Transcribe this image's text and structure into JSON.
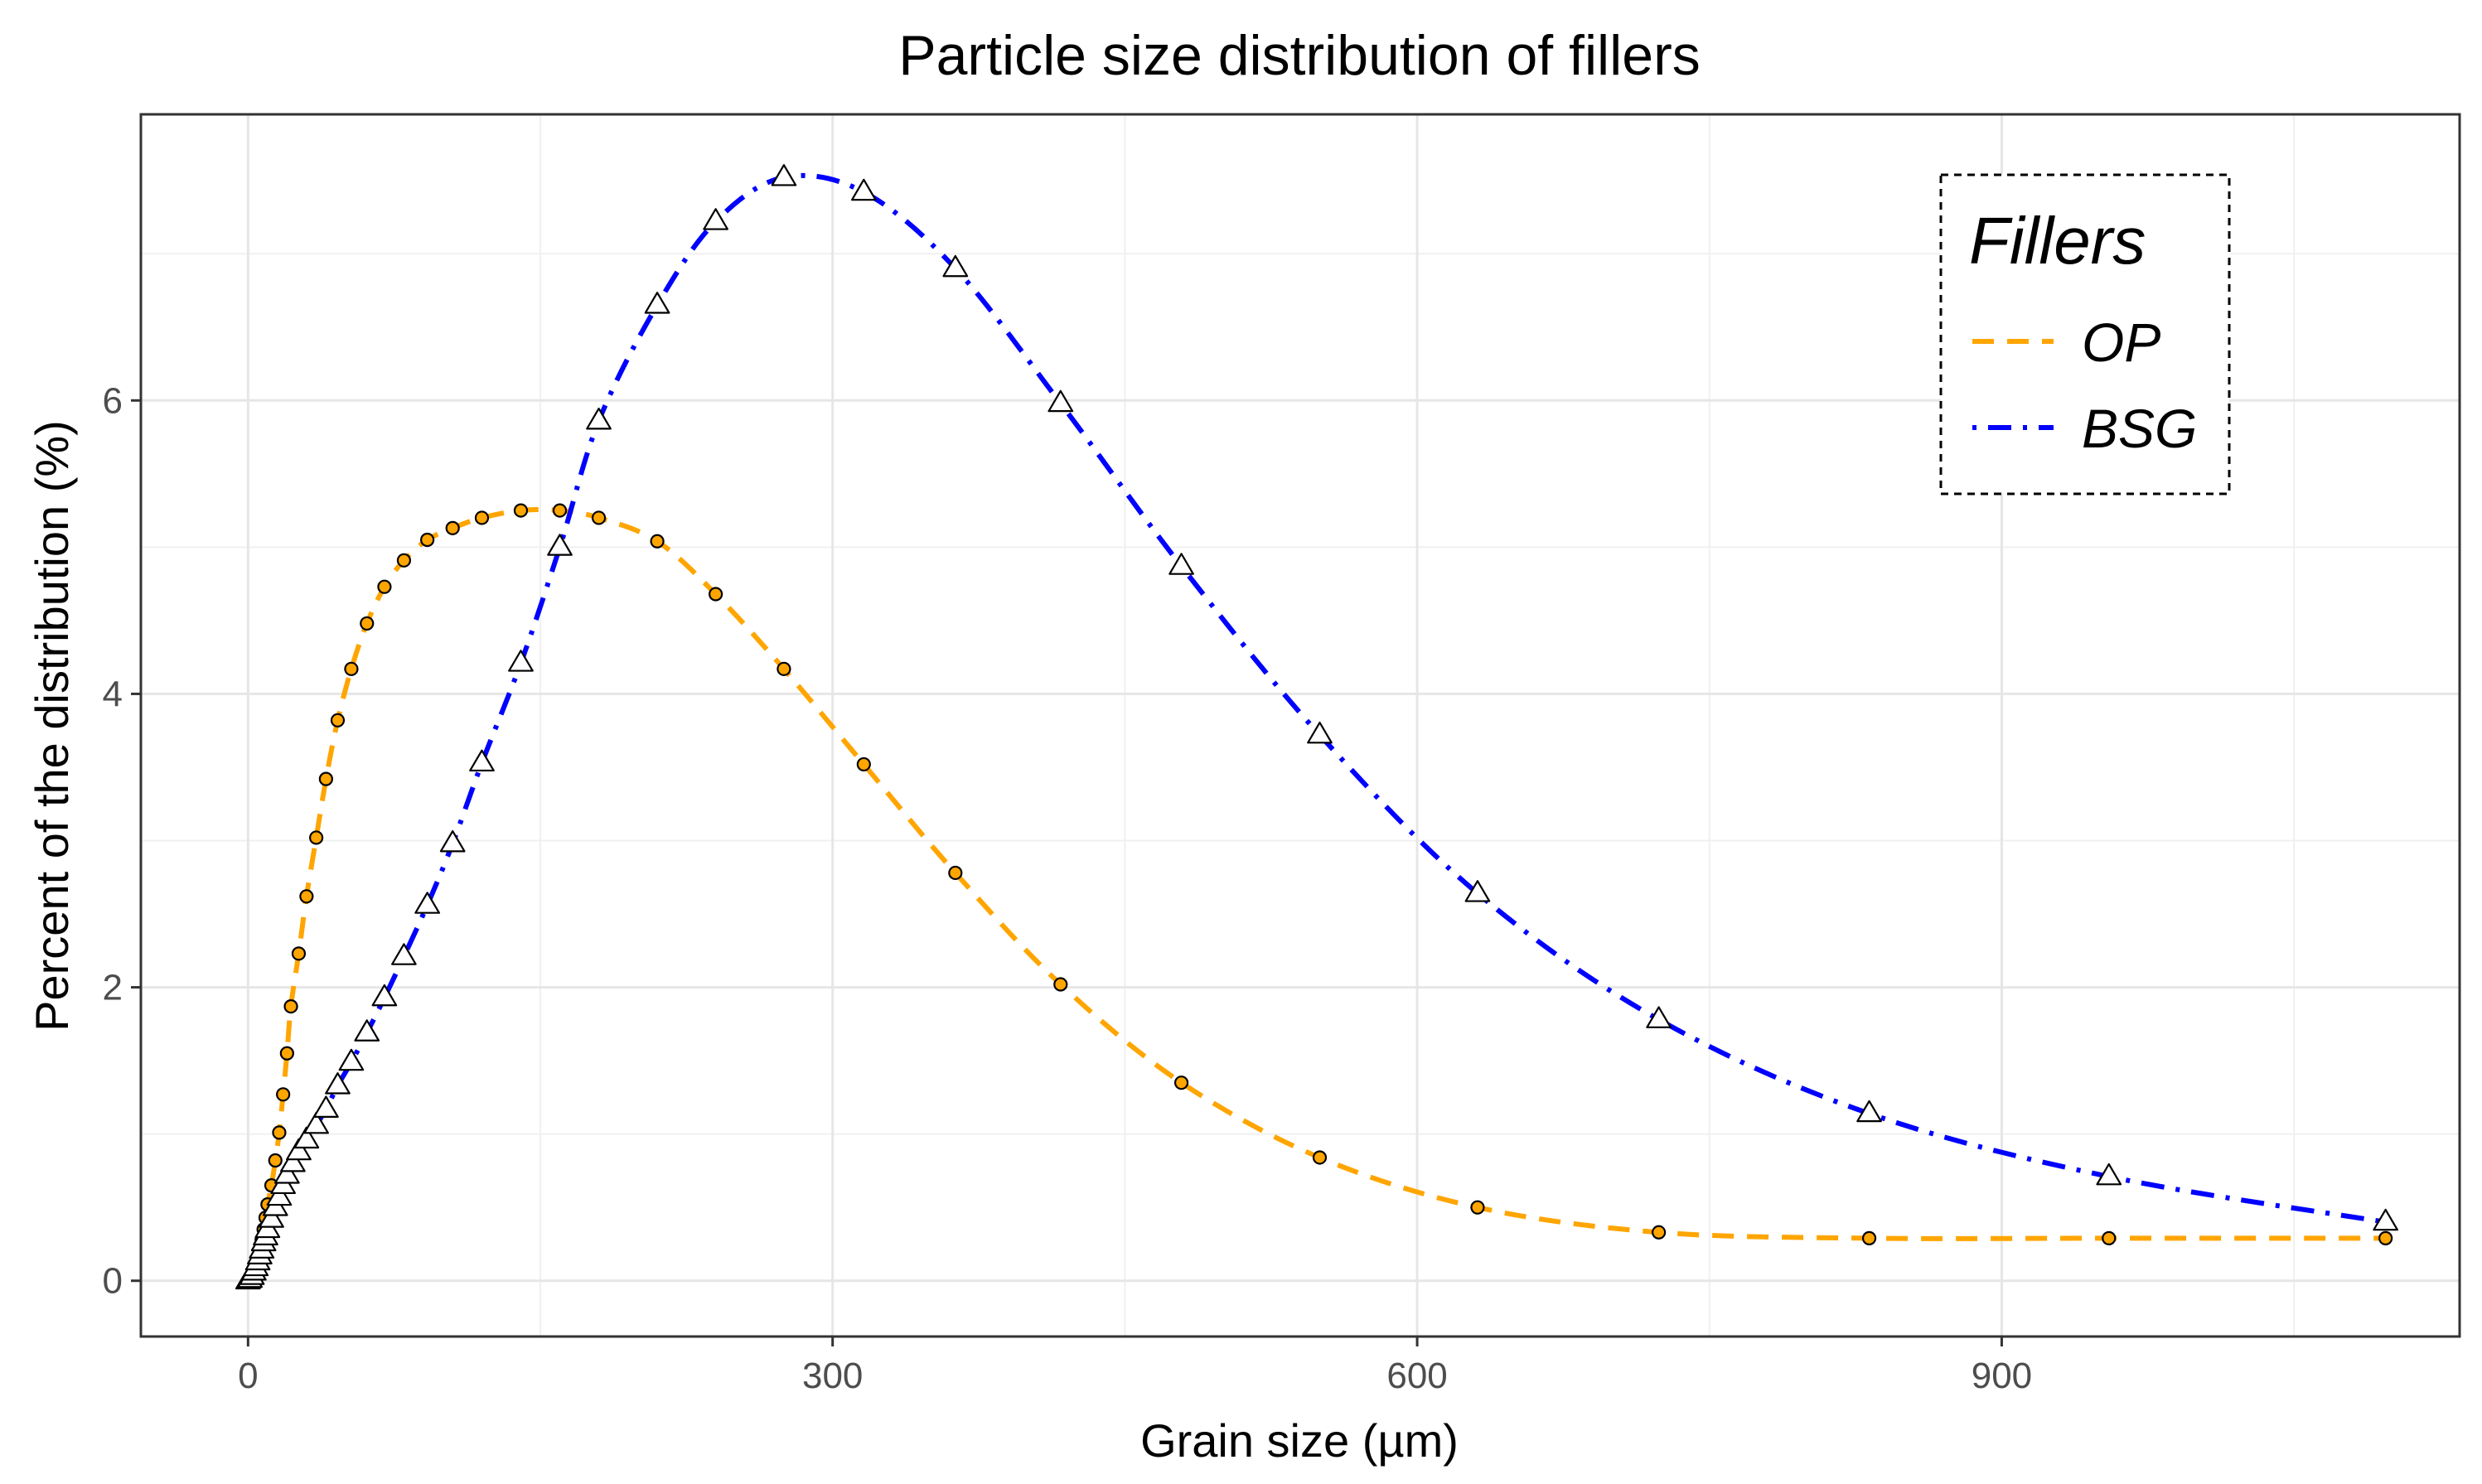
{
  "chart_data": {
    "type": "line",
    "title": "Particle size distribution of fillers",
    "xlabel": "Grain size (µm)",
    "ylabel": "Percent of the distribution (%)",
    "xlim": [
      -55,
      1135
    ],
    "ylim": [
      -0.38,
      7.95
    ],
    "x_ticks": [
      0,
      300,
      600,
      900
    ],
    "y_ticks": [
      0,
      2,
      4,
      6
    ],
    "grid": true,
    "legend": {
      "title": "Fillers",
      "position": "top-right"
    },
    "series": [
      {
        "name": "OP",
        "color": "#FFA500",
        "line_style": "dashed",
        "marker": "circle",
        "x": [
          0,
          1,
          2,
          3,
          4,
          5,
          6,
          7,
          8,
          9,
          10,
          12,
          14,
          16,
          18,
          20,
          22,
          26,
          30,
          35,
          40,
          46,
          53,
          61,
          70,
          80,
          92,
          105,
          120,
          140,
          160,
          180,
          210,
          240,
          275,
          316,
          363,
          417,
          479,
          550,
          631,
          724,
          832,
          955,
          1097
        ],
        "y": [
          0,
          0.01,
          0.03,
          0.06,
          0.1,
          0.15,
          0.21,
          0.28,
          0.35,
          0.43,
          0.52,
          0.65,
          0.82,
          1.01,
          1.27,
          1.55,
          1.87,
          2.23,
          2.62,
          3.02,
          3.42,
          3.82,
          4.17,
          4.48,
          4.73,
          4.91,
          5.05,
          5.13,
          5.2,
          5.25,
          5.25,
          5.2,
          5.04,
          4.68,
          4.17,
          3.52,
          2.78,
          2.02,
          1.35,
          0.84,
          0.5,
          0.33,
          0.29,
          0.29,
          0.29
        ]
      },
      {
        "name": "BSG",
        "color": "#0000FF",
        "line_style": "dotdash",
        "marker": "triangle",
        "x": [
          0,
          1,
          2,
          3,
          4,
          5,
          6,
          7,
          8,
          9,
          10,
          12,
          14,
          16,
          18,
          20,
          23,
          26,
          30,
          35,
          40,
          46,
          53,
          61,
          70,
          80,
          92,
          105,
          120,
          140,
          160,
          180,
          210,
          240,
          275,
          316,
          363,
          417,
          479,
          550,
          631,
          724,
          832,
          955,
          1097
        ],
        "y": [
          0,
          0.01,
          0.03,
          0.06,
          0.09,
          0.13,
          0.17,
          0.21,
          0.26,
          0.3,
          0.35,
          0.42,
          0.5,
          0.57,
          0.65,
          0.72,
          0.8,
          0.88,
          0.96,
          1.06,
          1.17,
          1.33,
          1.49,
          1.69,
          1.93,
          2.21,
          2.56,
          2.98,
          3.53,
          4.21,
          5.0,
          5.86,
          6.65,
          7.22,
          7.52,
          7.42,
          6.9,
          5.98,
          4.87,
          3.72,
          2.64,
          1.78,
          1.14,
          0.71,
          0.4
        ]
      }
    ]
  }
}
